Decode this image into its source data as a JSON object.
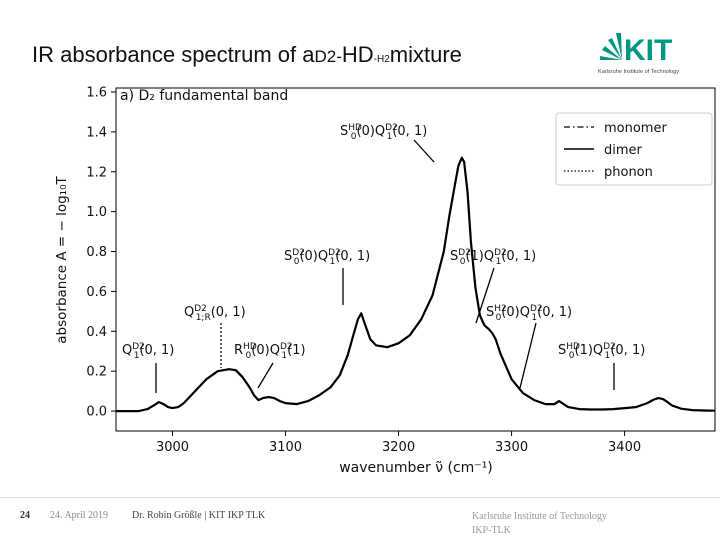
{
  "slide": {
    "title_part1": "IR absorbance spectrum of a ",
    "title_part2": "D2-",
    "title_part3": "HD",
    "title_part4": "-H2",
    "title_part5": " mixture"
  },
  "logo": {
    "letters": "KIT",
    "subtitle": "Karlsruhe Institute of Technology",
    "color": "#009682"
  },
  "chart_data": {
    "type": "line",
    "panel_label": "a) D₂ fundamental band",
    "xlabel": "wavenumber ν̃ (cm⁻¹)",
    "ylabel": "absorbance A = − log₁₀T",
    "xlim": [
      2950,
      3480
    ],
    "ylim": [
      -0.1,
      1.62
    ],
    "x_ticks": [
      3000,
      3100,
      3200,
      3300,
      3400
    ],
    "y_ticks": [
      0.0,
      0.2,
      0.4,
      0.6,
      0.8,
      1.0,
      1.2,
      1.4,
      1.6
    ],
    "grid": false,
    "legend_position": "top-right",
    "legend": [
      "monomer",
      "dimer",
      "phonon"
    ],
    "series": [
      {
        "name": "dimer",
        "x": [
          2950,
          2960,
          2970,
          2978,
          2984,
          2988,
          2992,
          2996,
          3000,
          3005,
          3010,
          3020,
          3030,
          3040,
          3050,
          3056,
          3062,
          3068,
          3072,
          3076,
          3080,
          3085,
          3090,
          3095,
          3100,
          3110,
          3120,
          3130,
          3140,
          3148,
          3155,
          3160,
          3164,
          3167,
          3170,
          3175,
          3180,
          3190,
          3200,
          3210,
          3220,
          3230,
          3240,
          3245,
          3250,
          3253,
          3256,
          3258,
          3261,
          3264,
          3268,
          3272,
          3276,
          3280,
          3283,
          3286,
          3290,
          3300,
          3310,
          3320,
          3330,
          3338,
          3342,
          3346,
          3350,
          3360,
          3370,
          3380,
          3390,
          3400,
          3410,
          3420,
          3426,
          3430,
          3434,
          3438,
          3442,
          3450,
          3460,
          3470,
          3480
        ],
        "y": [
          0.0,
          0.0,
          0.0,
          0.01,
          0.03,
          0.045,
          0.035,
          0.02,
          0.015,
          0.02,
          0.04,
          0.1,
          0.16,
          0.2,
          0.21,
          0.205,
          0.17,
          0.12,
          0.08,
          0.055,
          0.065,
          0.07,
          0.065,
          0.05,
          0.04,
          0.035,
          0.05,
          0.08,
          0.12,
          0.18,
          0.28,
          0.38,
          0.46,
          0.49,
          0.44,
          0.36,
          0.33,
          0.32,
          0.34,
          0.38,
          0.46,
          0.58,
          0.8,
          0.98,
          1.14,
          1.23,
          1.27,
          1.25,
          1.1,
          0.85,
          0.62,
          0.48,
          0.43,
          0.41,
          0.39,
          0.36,
          0.29,
          0.16,
          0.09,
          0.055,
          0.035,
          0.035,
          0.05,
          0.035,
          0.02,
          0.01,
          0.008,
          0.008,
          0.01,
          0.015,
          0.02,
          0.04,
          0.058,
          0.065,
          0.06,
          0.045,
          0.028,
          0.012,
          0.005,
          0.003,
          0.002
        ]
      }
    ],
    "annotations": [
      {
        "label": "S0HD(0)Q1D2(0,1)",
        "x": 3258,
        "base": "S",
        "sup1": "HD",
        "sub1": "0",
        "mid": "(0)Q",
        "sup2": "D2",
        "sub2": "1",
        "tail": "(0, 1)"
      },
      {
        "label": "S0D2(0)Q1D2(0,1)",
        "x": 3167,
        "base": "S",
        "sup1": "D2",
        "sub1": "0",
        "mid": "(0)Q",
        "sup2": "D2",
        "sub2": "1",
        "tail": "(0, 1)"
      },
      {
        "label": "S0D2(1)Q1D2(0,1)",
        "x": 3287,
        "base": "S",
        "sup1": "D2",
        "sub1": "0",
        "mid": "(1)Q",
        "sup2": "D2",
        "sub2": "1",
        "tail": "(0, 1)"
      },
      {
        "label": "Q1D2 1;R(0,1)",
        "x": 3056,
        "base": "Q",
        "sup1": "D2",
        "sub1": "1;R",
        "mid": "(0, 1)",
        "sup2": "",
        "sub2": "",
        "tail": ""
      },
      {
        "label": "Q1D2(0,1)",
        "x": 2988,
        "base": "Q",
        "sup1": "D2",
        "sub1": "1",
        "mid": "(0, 1)",
        "sup2": "",
        "sub2": "",
        "tail": ""
      },
      {
        "label": "R0HD(0)Q1D2(1)",
        "x": 3082,
        "base": "R",
        "sup1": "HD",
        "sub1": "0",
        "mid": "(0)Q",
        "sup2": "D2",
        "sub2": "1",
        "tail": "(1)"
      },
      {
        "label": "S0H2(0)Q1D2(0,1)",
        "x": 3342,
        "base": "S",
        "sup1": "H2",
        "sub1": "0",
        "mid": "(0)Q",
        "sup2": "D2",
        "sub2": "1",
        "tail": "(0, 1)"
      },
      {
        "label": "S0HD(1)Q1D2(0,1)",
        "x": 3430,
        "base": "S",
        "sup1": "HD",
        "sub1": "0",
        "mid": "(1)Q",
        "sup2": "D2",
        "sub2": "1",
        "tail": "(0, 1)"
      }
    ]
  },
  "footer": {
    "page": "24",
    "date": "24. April 2019",
    "author": "Dr. Robin Größle | KIT IKP TLK",
    "institute_line1": "Karlsruhe Institute of Technology",
    "institute_line2": "IKP-TLK"
  }
}
